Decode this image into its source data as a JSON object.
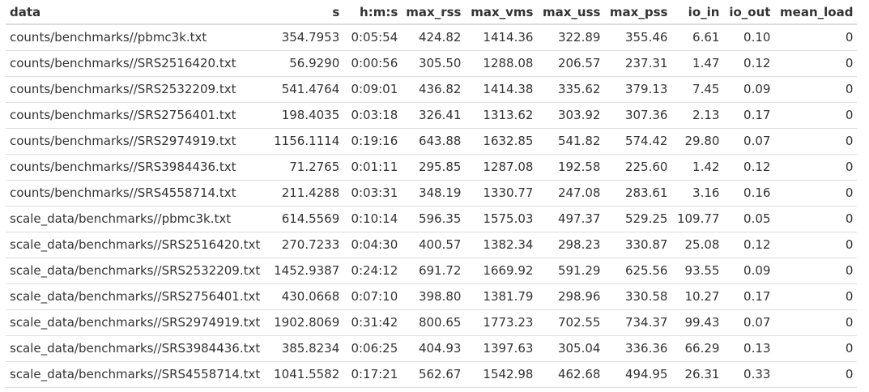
{
  "table": {
    "columns": [
      "data",
      "s",
      "h:m:s",
      "max_rss",
      "max_vms",
      "max_uss",
      "max_pss",
      "io_in",
      "io_out",
      "mean_load"
    ],
    "rows": [
      [
        "counts/benchmarks//pbmc3k.txt",
        "354.7953",
        "0:05:54",
        "424.82",
        "1414.36",
        "322.89",
        "355.46",
        "6.61",
        "0.10",
        "0"
      ],
      [
        "counts/benchmarks//SRS2516420.txt",
        "56.9290",
        "0:00:56",
        "305.50",
        "1288.08",
        "206.57",
        "237.31",
        "1.47",
        "0.12",
        "0"
      ],
      [
        "counts/benchmarks//SRS2532209.txt",
        "541.4764",
        "0:09:01",
        "436.82",
        "1414.38",
        "335.62",
        "379.13",
        "7.45",
        "0.09",
        "0"
      ],
      [
        "counts/benchmarks//SRS2756401.txt",
        "198.4035",
        "0:03:18",
        "326.41",
        "1313.62",
        "303.92",
        "307.36",
        "2.13",
        "0.17",
        "0"
      ],
      [
        "counts/benchmarks//SRS2974919.txt",
        "1156.1114",
        "0:19:16",
        "643.88",
        "1632.85",
        "541.82",
        "574.42",
        "29.80",
        "0.07",
        "0"
      ],
      [
        "counts/benchmarks//SRS3984436.txt",
        "71.2765",
        "0:01:11",
        "295.85",
        "1287.08",
        "192.58",
        "225.60",
        "1.42",
        "0.12",
        "0"
      ],
      [
        "counts/benchmarks//SRS4558714.txt",
        "211.4288",
        "0:03:31",
        "348.19",
        "1330.77",
        "247.08",
        "283.61",
        "3.16",
        "0.16",
        "0"
      ],
      [
        "scale_data/benchmarks//pbmc3k.txt",
        "614.5569",
        "0:10:14",
        "596.35",
        "1575.03",
        "497.37",
        "529.25",
        "109.77",
        "0.05",
        "0"
      ],
      [
        "scale_data/benchmarks//SRS2516420.txt",
        "270.7233",
        "0:04:30",
        "400.57",
        "1382.34",
        "298.23",
        "330.87",
        "25.08",
        "0.12",
        "0"
      ],
      [
        "scale_data/benchmarks//SRS2532209.txt",
        "1452.9387",
        "0:24:12",
        "691.72",
        "1669.92",
        "591.29",
        "625.56",
        "93.55",
        "0.09",
        "0"
      ],
      [
        "scale_data/benchmarks//SRS2756401.txt",
        "430.0668",
        "0:07:10",
        "398.80",
        "1381.79",
        "298.96",
        "330.58",
        "10.27",
        "0.17",
        "0"
      ],
      [
        "scale_data/benchmarks//SRS2974919.txt",
        "1902.8069",
        "0:31:42",
        "800.65",
        "1773.23",
        "702.55",
        "734.37",
        "99.43",
        "0.07",
        "0"
      ],
      [
        "scale_data/benchmarks//SRS3984436.txt",
        "385.8234",
        "0:06:25",
        "404.93",
        "1397.63",
        "305.04",
        "336.36",
        "66.29",
        "0.13",
        "0"
      ],
      [
        "scale_data/benchmarks//SRS4558714.txt",
        "1041.5582",
        "0:17:21",
        "562.67",
        "1542.98",
        "462.68",
        "494.95",
        "26.31",
        "0.33",
        "0"
      ]
    ]
  }
}
